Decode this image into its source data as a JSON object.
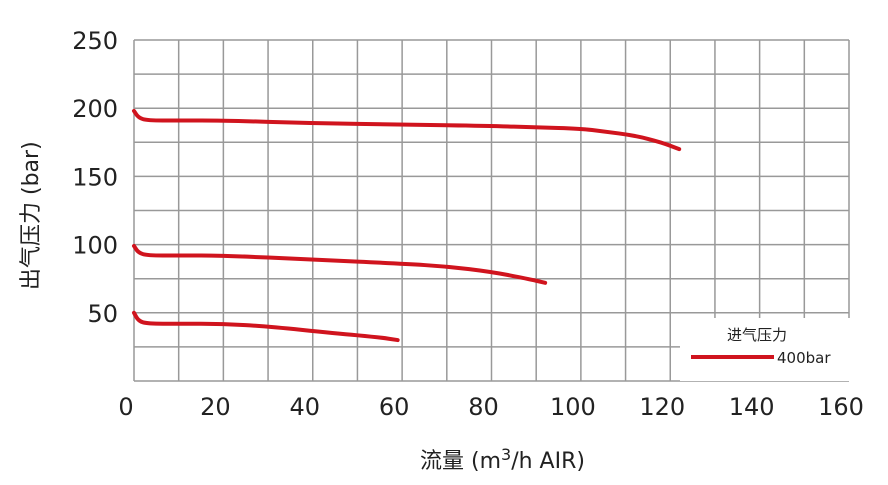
{
  "chart_data": {
    "type": "line",
    "title": "",
    "xlabel": "流量 (m³/h AIR)",
    "xlabel_parts": {
      "pre": "流量 (m",
      "sup": "3",
      "post": "/h AIR)"
    },
    "ylabel": "出气压力 (bar)",
    "xlim": [
      0,
      160
    ],
    "ylim": [
      0,
      250
    ],
    "xticks": [
      0,
      20,
      40,
      60,
      80,
      100,
      120,
      140,
      160
    ],
    "yticks": [
      50,
      100,
      150,
      200,
      250
    ],
    "grid": true,
    "grid_x_step": 10,
    "grid_y_step": 25,
    "color": "#d0141e",
    "legend": {
      "title": "进气压力",
      "entries": [
        "400bar"
      ],
      "placement": "bottom-right"
    },
    "series": [
      {
        "x": [
          0,
          1,
          3,
          10,
          20,
          40,
          60,
          80,
          90,
          100,
          105,
          112,
          118,
          122
        ],
        "y": [
          198,
          193,
          191,
          191,
          191,
          189,
          188,
          187,
          186,
          185,
          183,
          180,
          175,
          170
        ]
      },
      {
        "x": [
          0,
          1,
          3,
          10,
          20,
          40,
          60,
          70,
          80,
          88,
          92
        ],
        "y": [
          99,
          94,
          92,
          92,
          92,
          89,
          86,
          84,
          80,
          75,
          72
        ]
      },
      {
        "x": [
          0,
          1,
          3,
          10,
          20,
          30,
          45,
          55,
          59
        ],
        "y": [
          50,
          44,
          42,
          42,
          42,
          40,
          35,
          32,
          30
        ]
      }
    ]
  }
}
